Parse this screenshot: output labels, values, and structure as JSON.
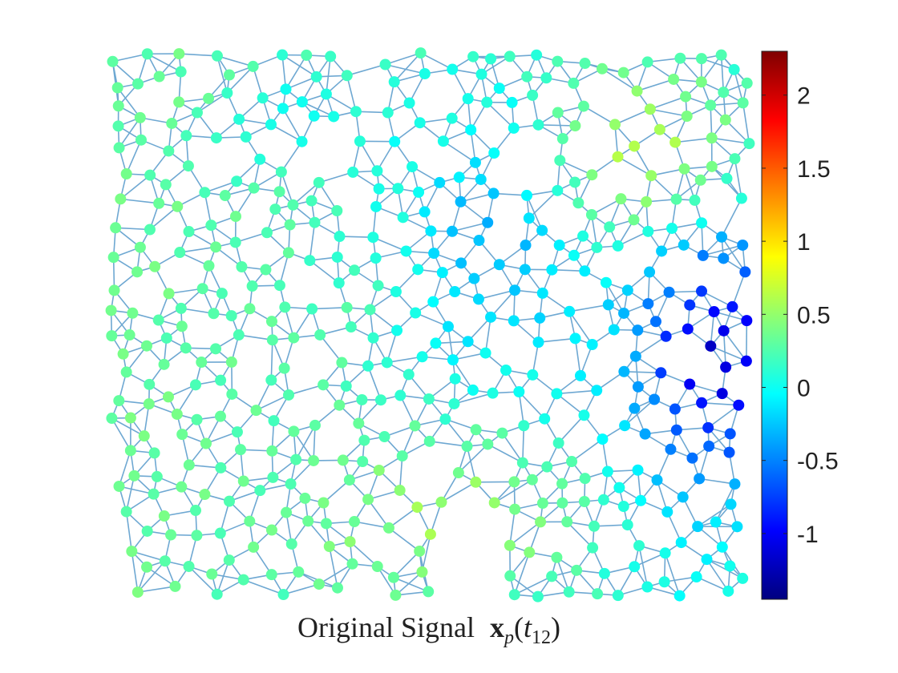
{
  "chart_data": {
    "type": "scatter",
    "subtype": "graph-signal",
    "title": "Original Signal",
    "title_math": "x_p(t_12)",
    "x_range": [
      0,
      1
    ],
    "y_range": [
      0,
      1
    ],
    "node_count": 500,
    "node_values_description": "node color encodes signal value via jet colormap",
    "regions": [
      {
        "area": "left",
        "value_range": [
          0.05,
          0.55
        ]
      },
      {
        "area": "center",
        "value_range": [
          -0.45,
          0.05
        ]
      },
      {
        "area": "upper-right",
        "value_range": [
          0.6,
          1.25
        ]
      },
      {
        "area": "right",
        "value_range": [
          -1.2,
          -0.5
        ]
      },
      {
        "area": "bottom-center",
        "value_range": [
          0.35,
          0.7
        ]
      }
    ],
    "edge_color": "#6ea8d2",
    "colorbar": {
      "colormap": "jet",
      "min": -1.45,
      "max": 2.3,
      "ticks": [
        -1,
        -0.5,
        0,
        0.5,
        1,
        1.5,
        2
      ],
      "tick_labels": [
        "-1",
        "-0.5",
        "0",
        "0.5",
        "1",
        "1.5",
        "2"
      ]
    }
  }
}
